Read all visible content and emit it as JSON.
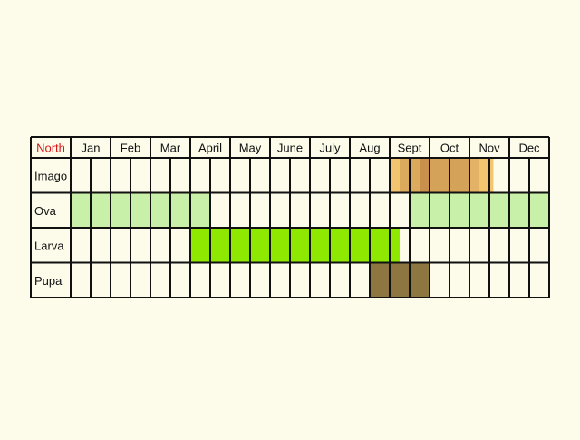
{
  "chart_data": {
    "type": "table",
    "corner_label": "North",
    "months": [
      "Jan",
      "Feb",
      "Mar",
      "April",
      "May",
      "June",
      "July",
      "Aug",
      "Sept",
      "Oct",
      "Nov",
      "Dec"
    ],
    "stages": [
      {
        "name": "Imago",
        "bands": [
          {
            "from": 8.0,
            "to": 8.25,
            "color": "#f2c56e"
          },
          {
            "from": 8.25,
            "to": 8.75,
            "color": "#dcaa5c"
          },
          {
            "from": 8.75,
            "to": 9.0,
            "color": "#c8904c"
          },
          {
            "from": 9.0,
            "to": 10.0,
            "color": "#d4a259"
          },
          {
            "from": 10.0,
            "to": 10.25,
            "color": "#e4b266"
          },
          {
            "from": 10.25,
            "to": 10.6,
            "color": "#f2c56e"
          }
        ]
      },
      {
        "name": "Ova",
        "bands": [
          {
            "from": 0.0,
            "to": 3.5,
            "color": "#c8f0a8"
          },
          {
            "from": 8.5,
            "to": 12.0,
            "color": "#c8f0a8"
          }
        ]
      },
      {
        "name": "Larva",
        "bands": [
          {
            "from": 3.0,
            "to": 8.25,
            "color": "#8ee800"
          }
        ]
      },
      {
        "name": "Pupa",
        "bands": [
          {
            "from": 7.5,
            "to": 9.0,
            "color": "#8e7640"
          }
        ]
      }
    ],
    "colors": {
      "background": "#fdfbea",
      "grid": "#111111",
      "cell": "#fdfbea",
      "corner_label": "#d81818"
    }
  }
}
